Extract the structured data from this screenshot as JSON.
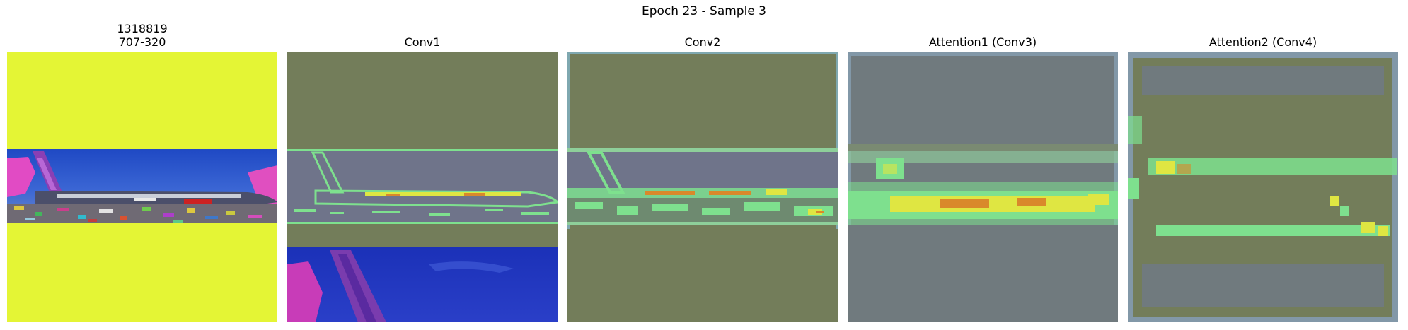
{
  "figure": {
    "title": "Epoch 23 - Sample 3"
  },
  "panels": [
    {
      "id": "input",
      "title_lines": [
        "1318819",
        "707-320"
      ]
    },
    {
      "id": "conv1",
      "title_lines": [
        "Conv1"
      ]
    },
    {
      "id": "conv2",
      "title_lines": [
        "Conv2"
      ]
    },
    {
      "id": "attn1",
      "title_lines": [
        "Attention1 (Conv3)"
      ]
    },
    {
      "id": "attn2",
      "title_lines": [
        "Attention2 (Conv4)"
      ]
    }
  ],
  "colors": {
    "pad_yellow": "#e4f535",
    "sky_blue": "#2a55c9",
    "olive_overlay": "#727d5a",
    "gray_overlay": "#707a7e",
    "activation_green": "#7ee08e",
    "activation_yellow": "#dfe642",
    "activation_orange": "#d9892b",
    "deep_blue": "#1a2fb3",
    "magenta": "#c83cb8"
  }
}
